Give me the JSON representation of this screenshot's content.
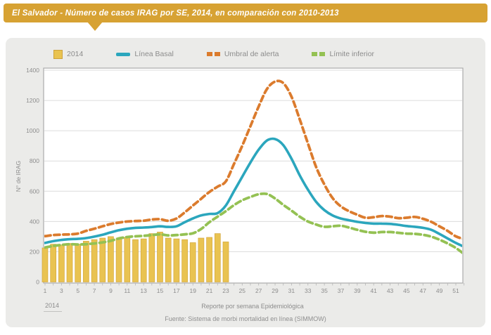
{
  "header": {
    "title": "El Salvador - Número de casos IRAG por SE, 2014, en comparación con 2010-2013"
  },
  "legend": [
    {
      "label": "2014",
      "type": "bar",
      "color": "#e9c351"
    },
    {
      "label": "Línea Basal",
      "type": "line",
      "color": "#2ba6bd"
    },
    {
      "label": "Umbral de alerta",
      "type": "dash",
      "color": "#db7b2d"
    },
    {
      "label": "Límite inferior",
      "type": "dash",
      "color": "#94c153"
    }
  ],
  "chart_data": {
    "type": "bar+line combo",
    "title": "El Salvador - Número de casos IRAG por SE, 2014, en comparación con 2010-2013",
    "ylabel": "N° de IRAG",
    "xlabel": "Reporte por semana Epidemiológica",
    "x_axis_year_label": "2014",
    "source": "Fuente: Sistema de morbi mortalidad en línea (SIMMOW)",
    "ylim": [
      0,
      1400
    ],
    "yticks": [
      0,
      200,
      400,
      600,
      800,
      1000,
      1200,
      1400
    ],
    "weeks_total": 52,
    "x_tick_labels": [
      1,
      3,
      5,
      7,
      9,
      11,
      13,
      15,
      17,
      19,
      21,
      23,
      25,
      27,
      29,
      31,
      33,
      35,
      37,
      39,
      41,
      43,
      45,
      47,
      49,
      51
    ],
    "grid": true,
    "legend_position": "top",
    "bar_series": {
      "name": "2014",
      "color": "#e9c351",
      "border_color": "#d3a73e",
      "start_week": 1,
      "values": [
        225,
        250,
        245,
        255,
        250,
        270,
        280,
        290,
        300,
        290,
        295,
        280,
        285,
        320,
        330,
        290,
        285,
        280,
        260,
        290,
        295,
        320,
        265
      ]
    },
    "line_series": [
      {
        "name": "Línea Basal",
        "color": "#2ba6bd",
        "style": "solid",
        "values": [
          258,
          270,
          278,
          283,
          285,
          290,
          300,
          312,
          328,
          342,
          352,
          358,
          360,
          363,
          368,
          364,
          368,
          395,
          420,
          440,
          450,
          455,
          505,
          600,
          695,
          790,
          875,
          935,
          945,
          905,
          815,
          705,
          610,
          530,
          475,
          440,
          420,
          408,
          398,
          390,
          386,
          386,
          384,
          378,
          370,
          365,
          358,
          345,
          318,
          288,
          258,
          233
        ]
      },
      {
        "name": "Umbral de alerta",
        "color": "#db7b2d",
        "style": "dashed",
        "values": [
          303,
          310,
          313,
          315,
          320,
          338,
          352,
          368,
          383,
          393,
          400,
          403,
          405,
          413,
          415,
          405,
          420,
          460,
          505,
          550,
          595,
          630,
          665,
          780,
          900,
          1030,
          1160,
          1275,
          1325,
          1315,
          1225,
          1075,
          915,
          760,
          645,
          555,
          500,
          468,
          445,
          425,
          428,
          436,
          432,
          422,
          425,
          430,
          418,
          398,
          368,
          338,
          302,
          283
        ]
      },
      {
        "name": "Límite inferior",
        "color": "#94c153",
        "style": "dashed",
        "values": [
          228,
          238,
          245,
          250,
          248,
          250,
          255,
          262,
          272,
          288,
          297,
          302,
          305,
          310,
          315,
          308,
          310,
          315,
          322,
          350,
          395,
          432,
          468,
          508,
          540,
          562,
          580,
          582,
          552,
          510,
          472,
          432,
          400,
          380,
          365,
          368,
          372,
          360,
          345,
          332,
          326,
          330,
          330,
          325,
          320,
          318,
          312,
          300,
          280,
          255,
          225,
          185
        ]
      }
    ],
    "colors": {
      "header_gold": "#d7a233",
      "card_background": "#ebebe9",
      "plot_background": "#ffffff",
      "plot_border": "#ababab",
      "gridline": "#dcdcdc",
      "axis_text": "#8c8c8c"
    }
  }
}
